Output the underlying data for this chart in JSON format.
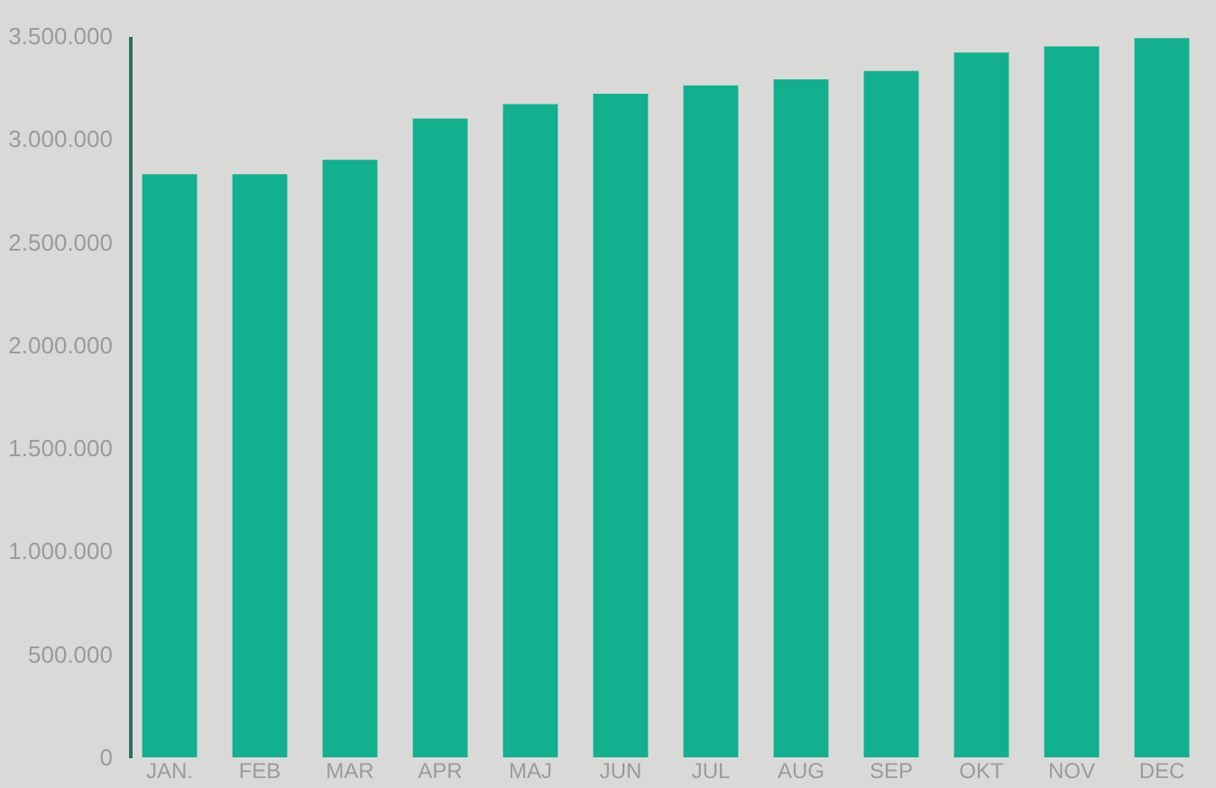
{
  "chart_data": {
    "type": "bar",
    "categories": [
      "JAN.",
      "FEB",
      "MAR",
      "APR",
      "MAJ",
      "JUN",
      "JUL",
      "AUG",
      "SEP",
      "OKT",
      "NOV",
      "DEC"
    ],
    "values": [
      2830000,
      2830000,
      2900000,
      3100000,
      3170000,
      3220000,
      3260000,
      3290000,
      3330000,
      3420000,
      3450000,
      3490000
    ],
    "color": "#12b08f",
    "ylim": [
      0,
      3500000
    ],
    "yticks": [
      {
        "value": 0,
        "label": "0"
      },
      {
        "value": 500000,
        "label": "500.000"
      },
      {
        "value": 1000000,
        "label": "1.000.000"
      },
      {
        "value": 1500000,
        "label": "1.500.000"
      },
      {
        "value": 2000000,
        "label": "2.000.000"
      },
      {
        "value": 2500000,
        "label": "2.500.000"
      },
      {
        "value": 3000000,
        "label": "3.000.000"
      },
      {
        "value": 3500000,
        "label": "3.500.000"
      }
    ]
  }
}
